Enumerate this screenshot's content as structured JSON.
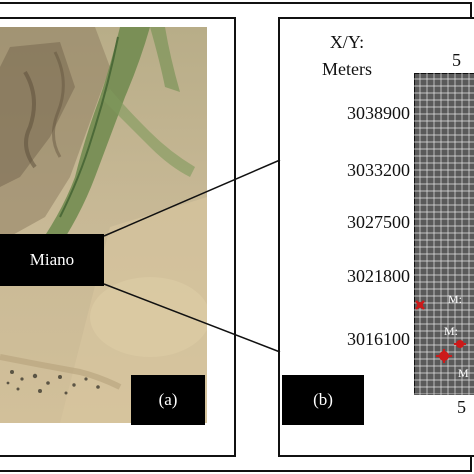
{
  "panel_a": {
    "location_label": "Miano",
    "panel_label": "(a)"
  },
  "panel_b": {
    "axis_title_line1": "X/Y:",
    "axis_title_line2": "Meters",
    "y_ticks": [
      "3038900",
      "3033200",
      "3027500",
      "3021800",
      "3016100"
    ],
    "x_tick_partial": "5",
    "x_tick_partial_bottom": "5",
    "panel_label": "(b)",
    "well_labels": [
      "M:",
      "M:",
      "M"
    ]
  },
  "colors": {
    "grid_background": "#5a5a5a",
    "grid_lines": "#ffffff",
    "well_marker": "#cc1a1a",
    "frame": "#111111",
    "label_box": "#000000"
  },
  "icons": [
    "well-marker-icon"
  ]
}
